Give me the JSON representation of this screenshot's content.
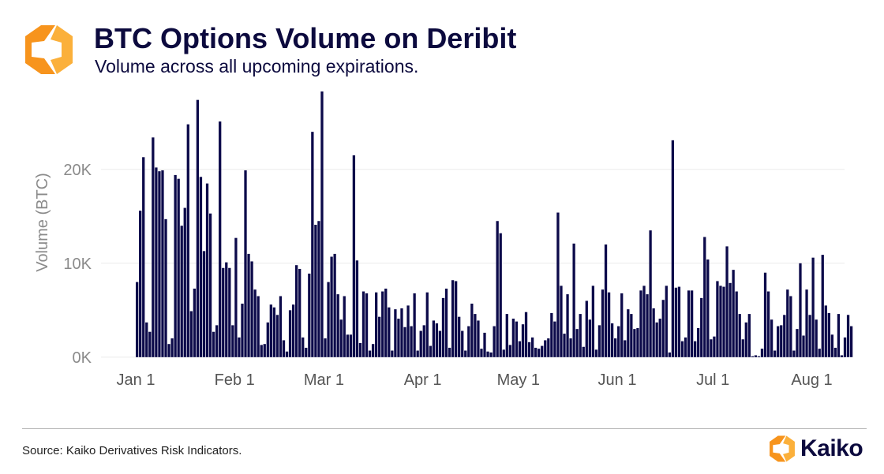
{
  "header": {
    "title": "BTC Options Volume on Deribit",
    "subtitle": "Volume across all upcoming expirations."
  },
  "footer": {
    "source": "Source: Kaiko Derivatives Risk Indicators.",
    "brand_name": "Kaiko"
  },
  "colors": {
    "bar": "#0c0a4a",
    "title": "#0c0a3e",
    "axis_text": "#8a8a8a",
    "grid": "#ebebeb",
    "logo_orange": "#f7941d",
    "logo_yellow": "#fbb03b"
  },
  "chart_data": {
    "type": "bar",
    "title": "BTC Options Volume on Deribit",
    "ylabel": "Volume (BTC)",
    "xlabel": "",
    "ylim": [
      -600,
      28800
    ],
    "yticks": [
      0,
      10000,
      20000
    ],
    "ytick_labels": [
      "0K",
      "10K",
      "20K"
    ],
    "xticks": [
      {
        "day": 0,
        "label": "Jan 1"
      },
      {
        "day": 31,
        "label": "Feb 1"
      },
      {
        "day": 59,
        "label": "Mar 1"
      },
      {
        "day": 90,
        "label": "Apr 1"
      },
      {
        "day": 120,
        "label": "May 1"
      },
      {
        "day": 151,
        "label": "Jun 1"
      },
      {
        "day": 181,
        "label": "Jul 1"
      },
      {
        "day": 212,
        "label": "Aug 1"
      }
    ],
    "grid": true,
    "start_day_label": "Jan 1",
    "values": [
      8000,
      15600,
      21300,
      3700,
      2700,
      23400,
      20200,
      19800,
      19900,
      14700,
      1400,
      2000,
      19400,
      19000,
      14000,
      15900,
      24800,
      4900,
      7300,
      27400,
      19200,
      11300,
      18500,
      15300,
      2700,
      3400,
      25100,
      9500,
      10100,
      9500,
      3400,
      12700,
      2100,
      5700,
      19900,
      11000,
      10200,
      7200,
      6500,
      1300,
      1400,
      3700,
      5600,
      5300,
      4500,
      6500,
      1800,
      600,
      5000,
      5600,
      9800,
      9400,
      2100,
      1000,
      8900,
      24000,
      14100,
      14500,
      28300,
      2000,
      8000,
      10700,
      11000,
      6700,
      4000,
      6500,
      2400,
      2400,
      21500,
      10300,
      1500,
      7000,
      6800,
      700,
      1400,
      6900,
      4300,
      7000,
      7300,
      5300,
      700,
      5100,
      4100,
      5200,
      3200,
      5500,
      3300,
      6800,
      700,
      2800,
      3400,
      6900,
      1200,
      3900,
      3600,
      2800,
      6300,
      7300,
      1000,
      8200,
      8100,
      4300,
      2800,
      700,
      3300,
      5700,
      4600,
      3900,
      900,
      2600,
      600,
      500,
      3300,
      14500,
      13200,
      800,
      4600,
      1300,
      4100,
      3800,
      1700,
      3500,
      4800,
      1600,
      2100,
      1000,
      900,
      1200,
      1800,
      2000,
      4700,
      3800,
      15400,
      7600,
      2500,
      6700,
      2000,
      12100,
      3000,
      4600,
      1100,
      6000,
      4000,
      7600,
      800,
      3400,
      7200,
      12000,
      6900,
      3600,
      2000,
      3300,
      6800,
      1800,
      5100,
      4600,
      3000,
      3100,
      7100,
      7600,
      6700,
      13500,
      5200,
      3700,
      4100,
      6100,
      7600,
      500,
      23100,
      7400,
      7500,
      1700,
      2100,
      7100,
      7100,
      1700,
      3100,
      6300,
      12800,
      10400,
      1900,
      2200,
      8100,
      7600,
      7500,
      11800,
      7900,
      9300,
      7000,
      4600,
      1900,
      3700,
      4600,
      100,
      200,
      100,
      900,
      9000,
      7000,
      4000,
      700,
      3300,
      3400,
      4500,
      7200,
      6500,
      700,
      3000,
      10000,
      2300,
      7200,
      4500,
      10600,
      4000,
      900,
      10900,
      5500,
      4700,
      2400,
      1000,
      4600,
      200,
      2100,
      4500,
      3300
    ]
  }
}
